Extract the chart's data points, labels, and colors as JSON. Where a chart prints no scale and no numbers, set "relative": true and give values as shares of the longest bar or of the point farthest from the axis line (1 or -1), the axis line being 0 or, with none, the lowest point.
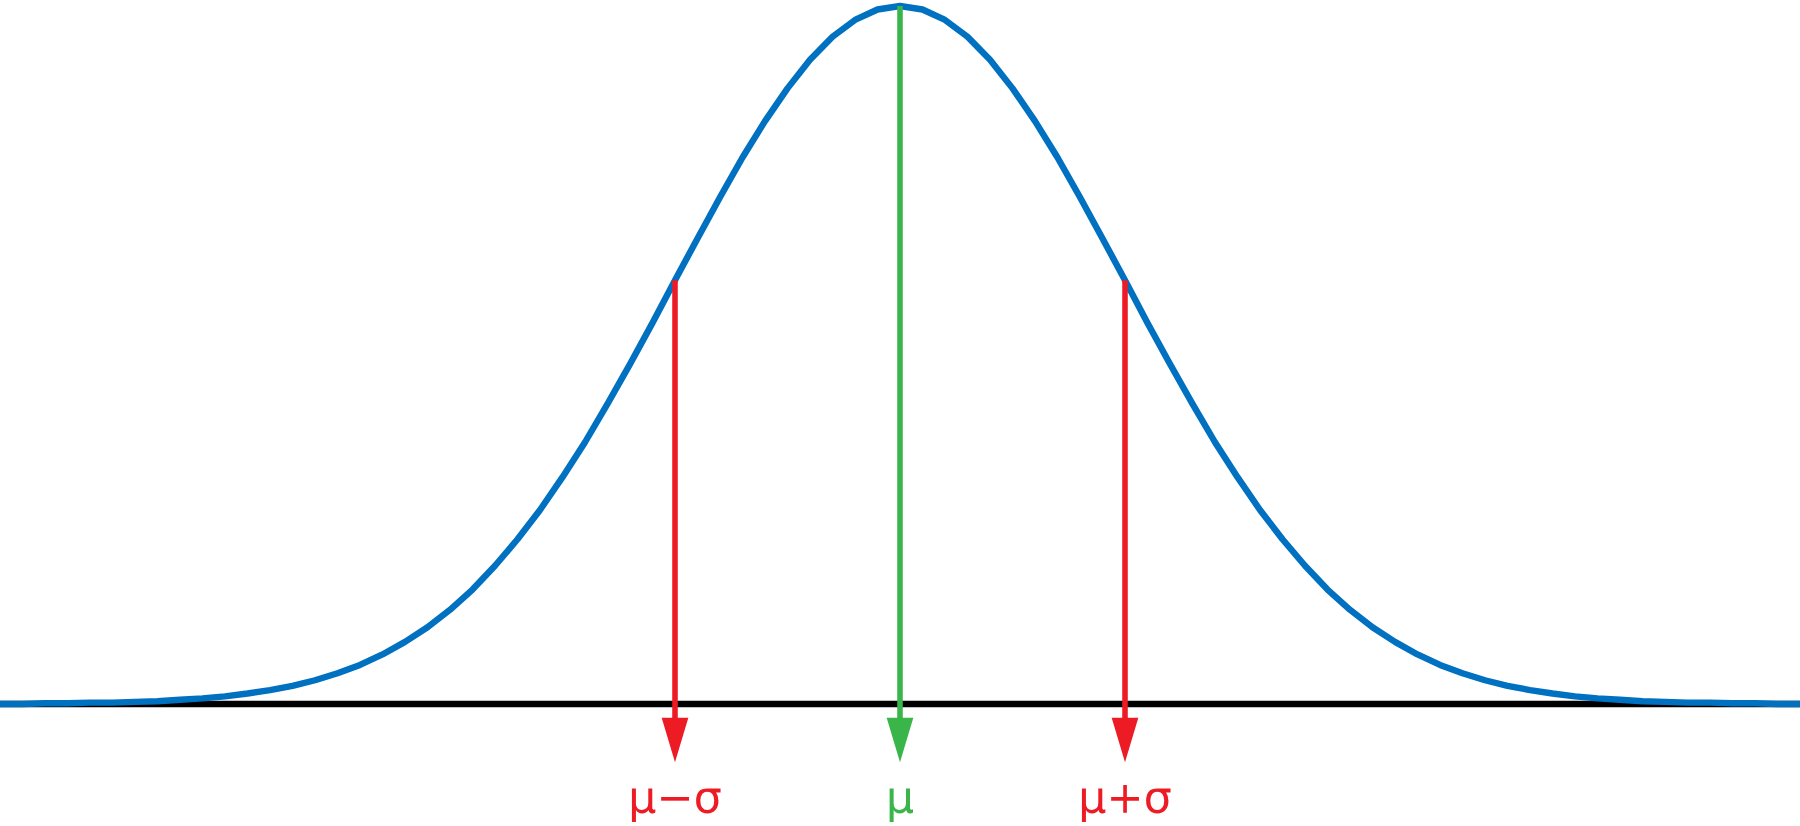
{
  "chart_data": {
    "type": "line",
    "relative": true,
    "categories": [
      null,
      null,
      null,
      null,
      null,
      null,
      null,
      null,
      null,
      null,
      null,
      null,
      null,
      null,
      null,
      null,
      null,
      null,
      null,
      null,
      null,
      null,
      null,
      null,
      null,
      null,
      null,
      null,
      null,
      null,
      "μ−σ",
      null,
      null,
      null,
      null,
      null,
      null,
      null,
      null,
      null,
      "μ",
      null,
      null,
      null,
      null,
      null,
      null,
      null,
      null,
      null,
      "μ+σ",
      null,
      null,
      null,
      null,
      null,
      null,
      null,
      null,
      null,
      null,
      null,
      null,
      null,
      null,
      null,
      null,
      null,
      null,
      null,
      null,
      null,
      null,
      null,
      null,
      null,
      null,
      null,
      null,
      null,
      null
    ],
    "series": [
      {
        "color": "#0070c0",
        "values": [
          0.0,
          0.0,
          0.001,
          0.001,
          0.002,
          0.002,
          0.003,
          0.004,
          0.006,
          0.008,
          0.011,
          0.015,
          0.02,
          0.026,
          0.034,
          0.044,
          0.056,
          0.071,
          0.089,
          0.11,
          0.135,
          0.164,
          0.198,
          0.236,
          0.278,
          0.325,
          0.375,
          0.43,
          0.487,
          0.546,
          0.607,
          0.667,
          0.726,
          0.783,
          0.835,
          0.882,
          0.923,
          0.956,
          0.98,
          0.995,
          1.0,
          0.995,
          0.98,
          0.956,
          0.923,
          0.882,
          0.835,
          0.783,
          0.726,
          0.667,
          0.607,
          0.546,
          0.487,
          0.43,
          0.375,
          0.325,
          0.278,
          0.236,
          0.198,
          0.164,
          0.135,
          0.11,
          0.089,
          0.071,
          0.056,
          0.044,
          0.034,
          0.026,
          0.02,
          0.015,
          0.011,
          0.008,
          0.006,
          0.004,
          0.003,
          0.002,
          0.002,
          0.001,
          0.001,
          0.0,
          0.0
        ]
      }
    ],
    "ref_lines": [
      {
        "axis": "x",
        "value": "μ−σ",
        "color": "#ed1c24"
      },
      {
        "axis": "x",
        "value": "μ",
        "color": "#39b54a"
      },
      {
        "axis": "x",
        "value": "μ+σ",
        "color": "#ed1c24"
      }
    ],
    "tick_labels": "x"
  }
}
